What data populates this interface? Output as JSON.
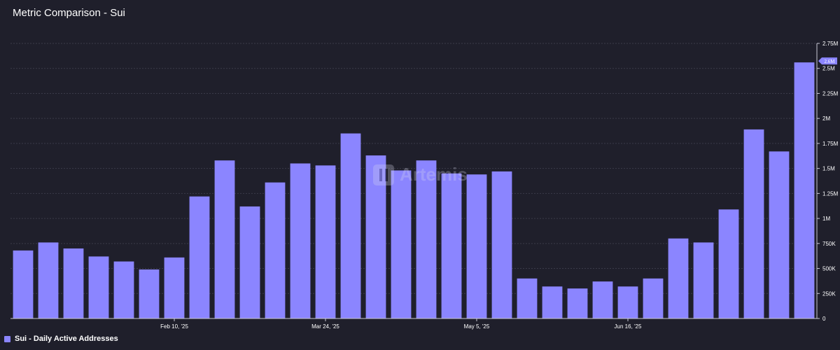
{
  "title": "Metric Comparison - Sui",
  "watermark": "Artemis",
  "legend": {
    "label": "Sui - Daily Active Addresses"
  },
  "colors": {
    "bar": "#8b85ff",
    "grid": "#3b3b4a",
    "axis": "#c9c9d6",
    "background": "#1f1f2b"
  },
  "last_value_badge": "2.6M",
  "chart_data": {
    "type": "bar",
    "title": "Metric Comparison - Sui",
    "xlabel": "",
    "ylabel": "",
    "ylim": [
      0,
      2750000
    ],
    "grid": true,
    "legend_position": "bottom-left",
    "yticks": [
      {
        "value": 0,
        "label": "0"
      },
      {
        "value": 250000,
        "label": "250K"
      },
      {
        "value": 500000,
        "label": "500K"
      },
      {
        "value": 750000,
        "label": "750K"
      },
      {
        "value": 1000000,
        "label": "1M"
      },
      {
        "value": 1250000,
        "label": "1.25M"
      },
      {
        "value": 1500000,
        "label": "1.5M"
      },
      {
        "value": 1750000,
        "label": "1.75M"
      },
      {
        "value": 2000000,
        "label": "2M"
      },
      {
        "value": 2250000,
        "label": "2.25M"
      },
      {
        "value": 2500000,
        "label": "2.5M"
      },
      {
        "value": 2750000,
        "label": "2.75M"
      }
    ],
    "xticks": [
      {
        "index": 6.5,
        "label": "Feb 10, '25"
      },
      {
        "index": 12.5,
        "label": "Mar 24, '25"
      },
      {
        "index": 18.5,
        "label": "May 5, '25"
      },
      {
        "index": 24.5,
        "label": "Jun 16, '25"
      }
    ],
    "series": [
      {
        "name": "Sui - Daily Active Addresses",
        "values": [
          680000,
          760000,
          700000,
          620000,
          570000,
          490000,
          610000,
          1220000,
          1580000,
          1120000,
          1360000,
          1550000,
          1530000,
          1850000,
          1630000,
          1480000,
          1580000,
          1450000,
          1440000,
          1470000,
          400000,
          320000,
          300000,
          370000,
          320000,
          400000,
          800000,
          760000,
          1090000,
          1890000,
          1670000,
          2560000
        ]
      }
    ]
  }
}
